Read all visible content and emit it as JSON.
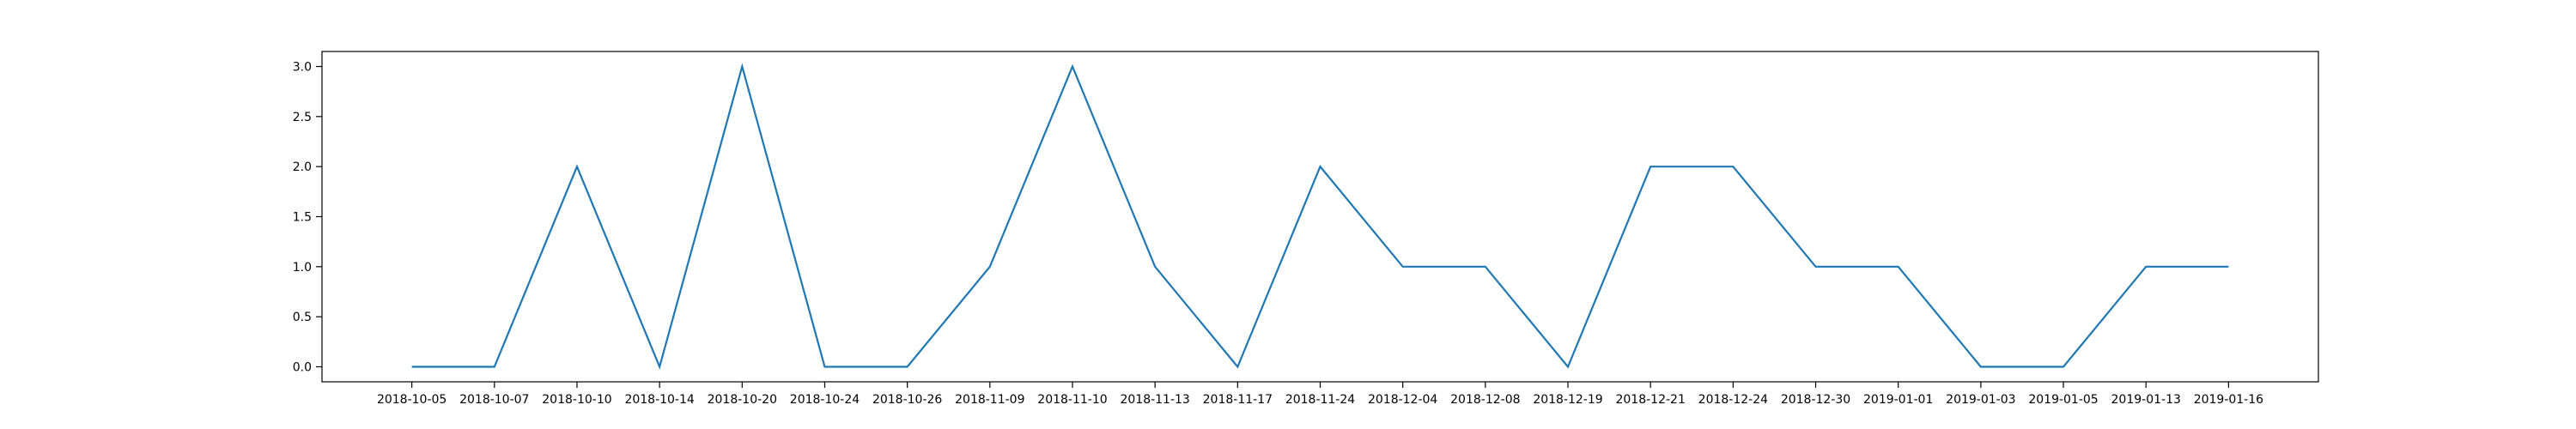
{
  "chart_data": {
    "type": "line",
    "title": "",
    "xlabel": "",
    "ylabel": "",
    "categories": [
      "2018-10-05",
      "2018-10-07",
      "2018-10-10",
      "2018-10-14",
      "2018-10-20",
      "2018-10-24",
      "2018-10-26",
      "2018-11-09",
      "2018-11-10",
      "2018-11-13",
      "2018-11-17",
      "2018-11-24",
      "2018-12-04",
      "2018-12-08",
      "2018-12-19",
      "2018-12-21",
      "2018-12-24",
      "2018-12-30",
      "2019-01-01",
      "2019-01-03",
      "2019-01-05",
      "2019-01-13",
      "2019-01-16"
    ],
    "series": [
      {
        "values": [
          0,
          0,
          2,
          0,
          3,
          0,
          0,
          1,
          3,
          1,
          0,
          2,
          1,
          1,
          0,
          2,
          2,
          1,
          1,
          0,
          0,
          1,
          1
        ],
        "color": "#1f77b4"
      }
    ],
    "ylim": [
      -0.15,
      3.15
    ],
    "yticks": [
      0.0,
      0.5,
      1.0,
      1.5,
      2.0,
      2.5,
      3.0
    ],
    "ytick_labels": [
      "0.0",
      "0.5",
      "1.0",
      "1.5",
      "2.0",
      "2.5",
      "3.0"
    ],
    "grid": false,
    "legend": false
  }
}
